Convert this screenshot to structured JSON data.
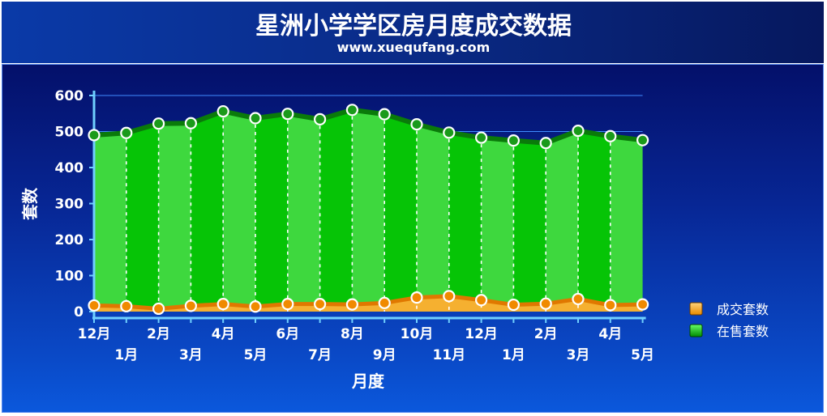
{
  "chart_data": {
    "type": "area",
    "title": "星洲小学学区房月度成交数据",
    "subtitle": "www.xuequfang.com",
    "xlabel": "月度",
    "ylabel": "套数",
    "ylim": [
      0,
      600
    ],
    "yticks": [
      "0",
      "100",
      "200",
      "300",
      "400",
      "500",
      "600"
    ],
    "categories": [
      "12月",
      "1月",
      "2月",
      "3月",
      "4月",
      "5月",
      "6月",
      "7月",
      "8月",
      "9月",
      "10月",
      "11月",
      "12月",
      "1月",
      "2月",
      "3月",
      "4月",
      "5月"
    ],
    "series": [
      {
        "name": "成交套数",
        "color": "#f5a000",
        "values": [
          17,
          15,
          8,
          16,
          21,
          14,
          21,
          21,
          20,
          24,
          39,
          43,
          32,
          19,
          22,
          35,
          18,
          20
        ]
      },
      {
        "name": "在售套数",
        "color": "#12b812",
        "values": [
          490,
          496,
          522,
          523,
          556,
          537,
          549,
          534,
          560,
          548,
          520,
          497,
          483,
          475,
          468,
          502,
          487,
          476
        ]
      }
    ],
    "grid": "horizontal",
    "legend": "right"
  }
}
